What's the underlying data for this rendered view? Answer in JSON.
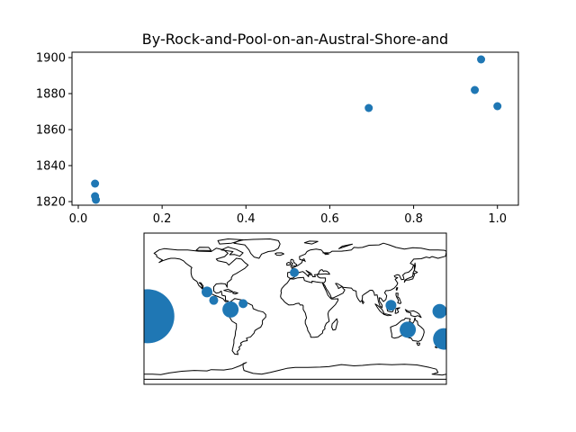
{
  "chart_data": [
    {
      "type": "scatter",
      "title": "By-Rock-and-Pool-on-an-Austral-Shore-and",
      "xlabel": "",
      "ylabel": "",
      "xlim": [
        -0.015,
        1.05
      ],
      "ylim": [
        1818,
        1903
      ],
      "xticks": [
        0.0,
        0.2,
        0.4,
        0.6,
        0.8,
        1.0
      ],
      "xtick_labels": [
        "0.0",
        "0.2",
        "0.4",
        "0.6",
        "0.8",
        "1.0"
      ],
      "yticks": [
        1820,
        1840,
        1860,
        1880,
        1900
      ],
      "ytick_labels": [
        "1820",
        "1840",
        "1860",
        "1880",
        "1900"
      ],
      "grid": false,
      "color": "#1f77b4",
      "points": [
        {
          "x": 0.04,
          "y": 1830
        },
        {
          "x": 0.04,
          "y": 1823
        },
        {
          "x": 0.042,
          "y": 1821
        },
        {
          "x": 0.693,
          "y": 1872
        },
        {
          "x": 0.946,
          "y": 1882
        },
        {
          "x": 0.961,
          "y": 1899
        },
        {
          "x": 1.0,
          "y": 1873
        }
      ]
    },
    {
      "type": "scatter",
      "subtype": "world-map-bubbles",
      "title": "",
      "projection": "equirectangular",
      "lon_range": [
        -180,
        180
      ],
      "lat_range": [
        -90,
        90
      ],
      "color": "#1f77b4",
      "points": [
        {
          "lon": -176,
          "lat": -9,
          "size": 30
        },
        {
          "lon": -105,
          "lat": 20,
          "size": 6
        },
        {
          "lon": -97,
          "lat": 10,
          "size": 5
        },
        {
          "lon": -77,
          "lat": -1,
          "size": 9
        },
        {
          "lon": -62,
          "lat": 6,
          "size": 5
        },
        {
          "lon": -1,
          "lat": 43,
          "size": 5
        },
        {
          "lon": 114,
          "lat": 4,
          "size": 6
        },
        {
          "lon": 134,
          "lat": -25,
          "size": 9
        },
        {
          "lon": 172,
          "lat": -3,
          "size": 8
        },
        {
          "lon": 177,
          "lat": -36,
          "size": 12
        }
      ]
    }
  ]
}
